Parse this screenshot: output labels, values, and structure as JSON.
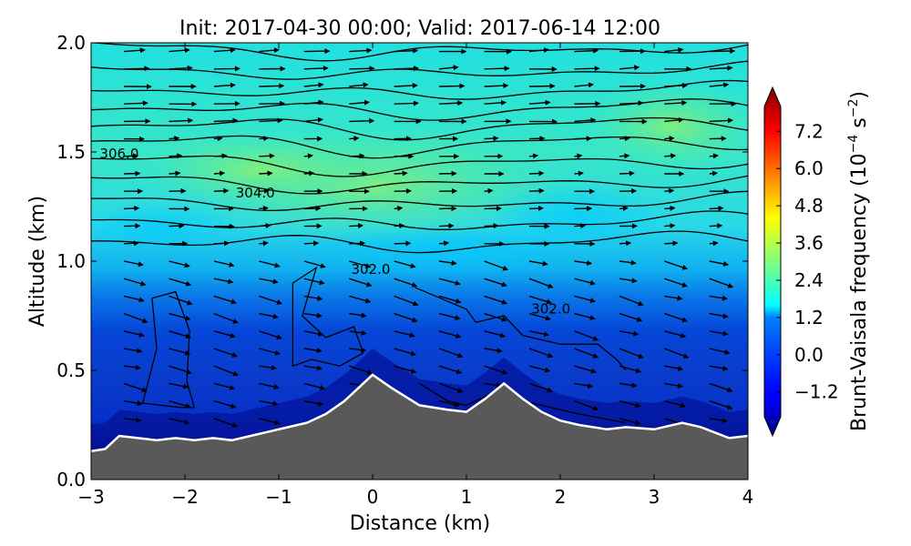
{
  "title": "Init: 2017-04-30 00:00; Valid: 2017-06-14 12:00",
  "chart_data": {
    "type": "heatmap",
    "title": "Init: 2017-04-30 00:00; Valid: 2017-06-14 12:00",
    "xlabel": "Distance (km)",
    "ylabel": "Altitude (km)",
    "xlim": [
      -3,
      4
    ],
    "ylim": [
      0.0,
      2.0
    ],
    "x_ticks": [
      "−3",
      "−2",
      "−1",
      "0",
      "1",
      "2",
      "3",
      "4"
    ],
    "x_tick_values": [
      -3,
      -2,
      -1,
      0,
      1,
      2,
      3,
      4
    ],
    "y_ticks": [
      "0.0",
      "0.5",
      "1.0",
      "1.5",
      "2.0"
    ],
    "y_tick_values": [
      0.0,
      0.5,
      1.0,
      1.5,
      2.0
    ],
    "colorbar": {
      "label": "Brunt-Vaisala frequency (10^-4 s^-2)",
      "min": -2.0,
      "max": 8.0,
      "ticks": [
        "−1.2",
        "0.0",
        "1.2",
        "2.4",
        "3.6",
        "4.8",
        "6.0",
        "7.2"
      ],
      "tick_values": [
        -1.2,
        0.0,
        1.2,
        2.4,
        3.6,
        4.8,
        6.0,
        7.2
      ],
      "extend": "both",
      "colormap": "jet"
    },
    "terrain": {
      "x": [
        -3.0,
        -2.85,
        -2.7,
        -2.5,
        -2.3,
        -2.1,
        -1.9,
        -1.7,
        -1.5,
        -1.3,
        -1.1,
        -0.9,
        -0.7,
        -0.5,
        -0.3,
        -0.15,
        0.0,
        0.2,
        0.5,
        0.8,
        1.0,
        1.2,
        1.4,
        1.6,
        1.8,
        2.0,
        2.2,
        2.5,
        2.7,
        3.0,
        3.3,
        3.5,
        3.8,
        4.0
      ],
      "y": [
        0.13,
        0.14,
        0.2,
        0.19,
        0.18,
        0.19,
        0.18,
        0.19,
        0.18,
        0.2,
        0.22,
        0.24,
        0.26,
        0.3,
        0.36,
        0.42,
        0.48,
        0.42,
        0.34,
        0.32,
        0.31,
        0.37,
        0.44,
        0.37,
        0.31,
        0.27,
        0.25,
        0.23,
        0.24,
        0.23,
        0.26,
        0.24,
        0.19,
        0.2
      ],
      "color": "#595959"
    },
    "contour_labels": [
      {
        "text": "306.0",
        "x": -2.7,
        "y": 1.49
      },
      {
        "text": "304.0",
        "x": -1.25,
        "y": 1.31
      },
      {
        "text": "302.0",
        "x": -0.02,
        "y": 0.96
      },
      {
        "text": "302.0",
        "x": 1.9,
        "y": 0.78
      }
    ],
    "contour_levels": [
      1.98,
      1.88,
      1.79,
      1.71,
      1.63,
      1.55,
      1.46,
      1.37,
      1.28,
      1.19,
      1.1
    ],
    "colors": {
      "terrain": "#595959",
      "terrain_outline": "#ffffff",
      "contour": "#000000",
      "vector": "#000000"
    }
  }
}
